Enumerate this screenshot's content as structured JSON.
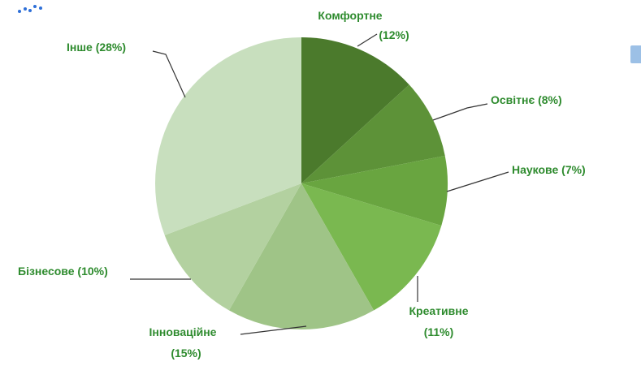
{
  "colors": {
    "label": "#2e8b2e",
    "leader": "#333333",
    "logo": "#2e6fd8",
    "edge_badge": "#9cc0e6"
  },
  "chart_data": {
    "type": "pie",
    "title": "",
    "start": "12 o'clock",
    "direction": "clockwise",
    "slices": [
      {
        "label": "Комфортне",
        "percent_text": "(12%)",
        "value": 12,
        "color": "#4b7a2c"
      },
      {
        "label": "Освітнє",
        "percent_text": "(8%)",
        "value": 8,
        "color": "#5d9238"
      },
      {
        "label": "Наукове",
        "percent_text": "(7%)",
        "value": 7,
        "color": "#69a540"
      },
      {
        "label": "Креативне",
        "percent_text": "(11%)",
        "value": 11,
        "color": "#7ab850"
      },
      {
        "label": "Інноваційне",
        "percent_text": "(15%)",
        "value": 15,
        "color": "#9fc487"
      },
      {
        "label": "Бізнесове",
        "percent_text": "(10%)",
        "value": 10,
        "color": "#b3d1a0"
      },
      {
        "label": "Інше",
        "percent_text": "(28%)",
        "value": 28,
        "color": "#c8dfbe"
      }
    ]
  }
}
